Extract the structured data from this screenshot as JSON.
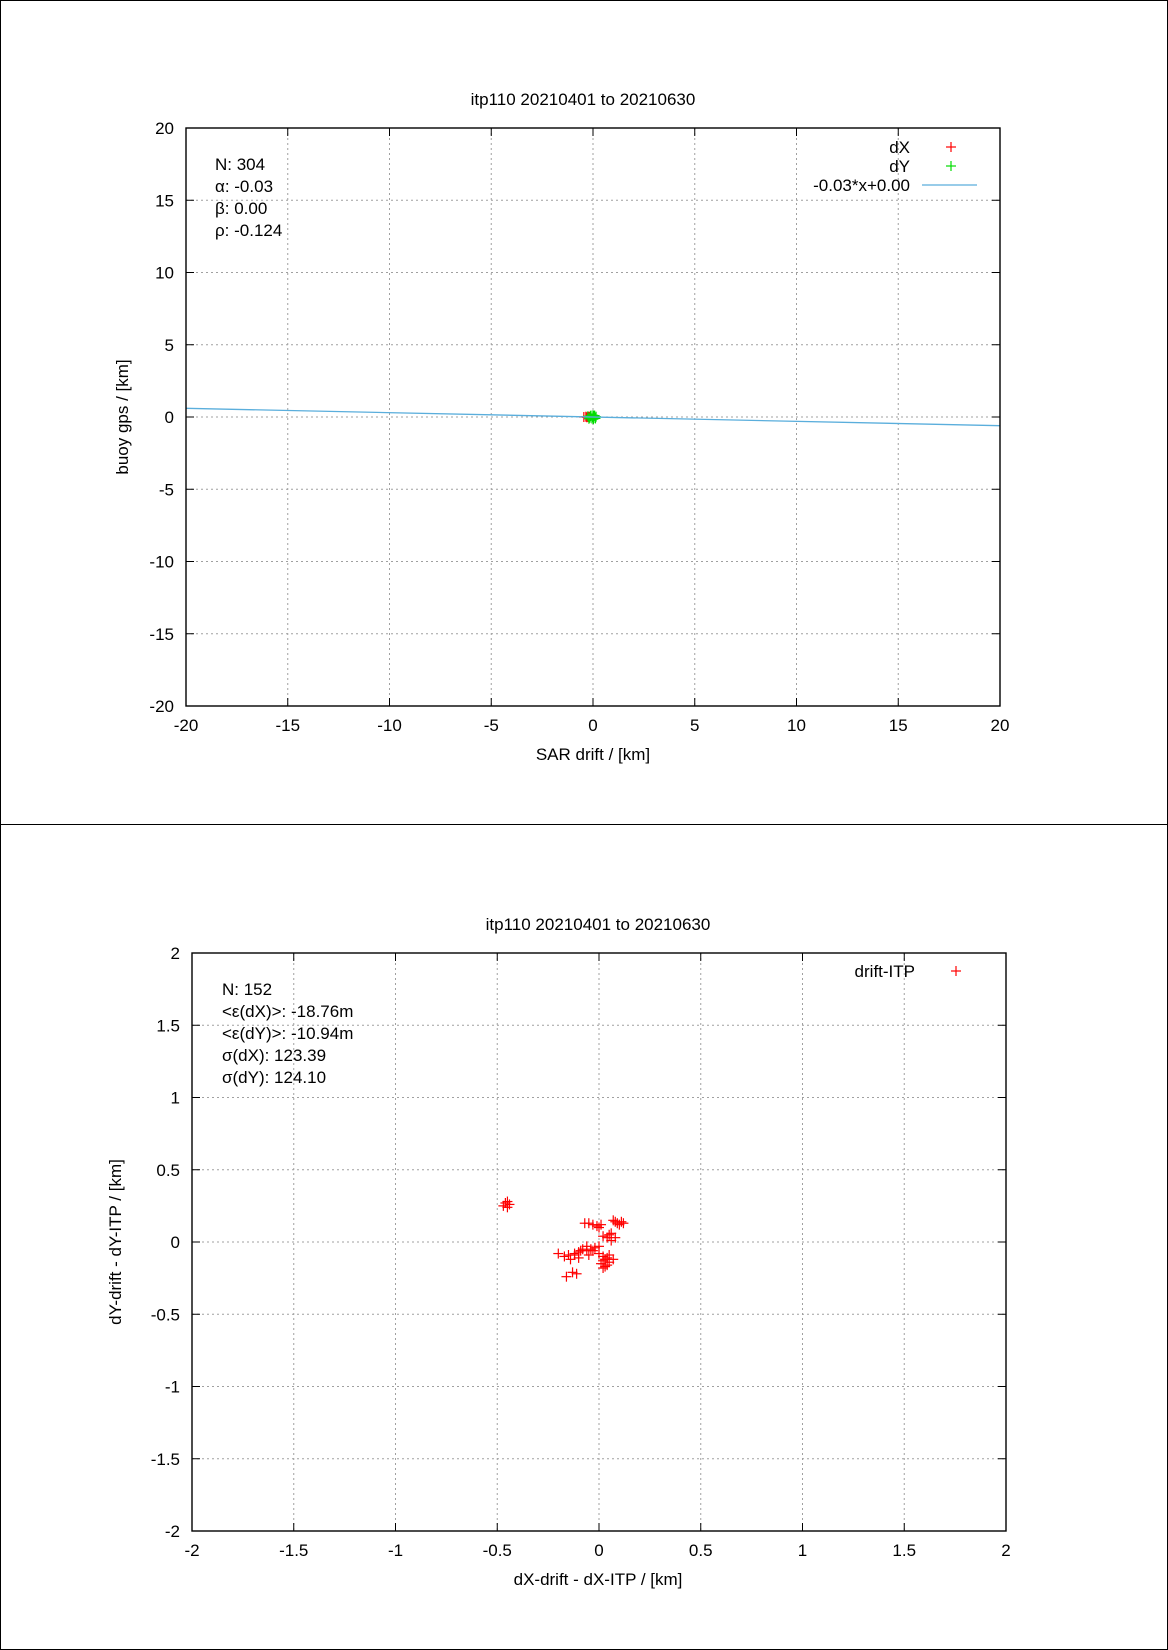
{
  "chart_data": [
    {
      "type": "scatter",
      "title": "itp110 20210401 to 20210630",
      "xlabel": "SAR drift / [km]",
      "ylabel": "buoy gps / [km]",
      "xlim": [
        -20,
        20
      ],
      "ylim": [
        -20,
        20
      ],
      "xticks": [
        "-20",
        "-15",
        "-10",
        "-5",
        "0",
        "5",
        "10",
        "15",
        "20"
      ],
      "yticks": [
        "-20",
        "-15",
        "-10",
        "-5",
        "0",
        "5",
        "10",
        "15",
        "20"
      ],
      "grid": true,
      "legend_position": "top-right",
      "stats": [
        "N: 304",
        "α: -0.03",
        "β: 0.00",
        "ρ: -0.124"
      ],
      "series": [
        {
          "name": "dX",
          "marker": "plus",
          "color": "#ff0000",
          "x": [
            -0.45,
            -0.35,
            -0.3,
            -0.25,
            -0.2,
            -0.18
          ],
          "y": [
            0.0,
            0.02,
            -0.02,
            0.01,
            0.0,
            0.02
          ]
        },
        {
          "name": "dY",
          "marker": "plus",
          "color": "#00dd00",
          "x": [
            -0.25,
            -0.15,
            -0.1,
            -0.05,
            0.0,
            0.05,
            0.1,
            0.15,
            -0.2,
            0.0,
            0.08,
            -0.12,
            0.12,
            0.02
          ],
          "y": [
            0.05,
            -0.05,
            0.1,
            -0.1,
            0.0,
            0.08,
            -0.06,
            0.02,
            -0.12,
            0.12,
            0.1,
            0.06,
            -0.1,
            -0.15
          ]
        },
        {
          "name": "-0.03*x+0.00",
          "type": "line",
          "color": "#5aaedc",
          "slope": -0.03,
          "intercept": 0.0
        }
      ]
    },
    {
      "type": "scatter",
      "title": "itp110 20210401 to 20210630",
      "xlabel": "dX-drift - dX-ITP / [km]",
      "ylabel": "dY-drift - dY-ITP / [km]",
      "xlim": [
        -2,
        2
      ],
      "ylim": [
        -2,
        2
      ],
      "xticks": [
        "-2",
        "-1.5",
        "-1",
        "-0.5",
        "0",
        "0.5",
        "1",
        "1.5",
        "2"
      ],
      "yticks": [
        "-2",
        "-1.5",
        "-1",
        "-0.5",
        "0",
        "0.5",
        "1",
        "1.5",
        "2"
      ],
      "grid": true,
      "legend_position": "top-right",
      "stats": [
        "N: 152",
        "<ε(dX)>:  -18.76m",
        "<ε(dY)>: -10.94m",
        "σ(dX):  123.39",
        "σ(dY):  124.10"
      ],
      "series": [
        {
          "name": "drift-ITP",
          "marker": "plus",
          "color": "#ff0000",
          "x": [
            -0.47,
            -0.46,
            -0.45,
            -0.44,
            -0.45,
            -0.07,
            -0.05,
            -0.03,
            -0.01,
            0.0,
            0.01,
            0.07,
            0.08,
            0.09,
            0.1,
            0.12,
            0.11,
            0.06,
            0.05,
            0.04,
            0.02,
            0.0,
            -0.02,
            -0.04,
            -0.06,
            -0.08,
            -0.1,
            -0.12,
            -0.15,
            -0.2,
            -0.17,
            -0.14,
            -0.12,
            -0.1,
            -0.11,
            -0.13,
            -0.16,
            0.02,
            0.03,
            0.05,
            0.07,
            0.03,
            0.01,
            0.02,
            0.04,
            0.05,
            -0.06,
            -0.03,
            0.0,
            0.06,
            0.08,
            -0.09,
            -0.05,
            0.02,
            0.04
          ],
          "y": [
            0.25,
            0.27,
            0.28,
            0.26,
            0.24,
            0.13,
            0.13,
            0.12,
            0.11,
            0.1,
            0.12,
            0.15,
            0.14,
            0.13,
            0.12,
            0.13,
            0.14,
            0.06,
            0.05,
            0.03,
            0.04,
            -0.03,
            -0.04,
            -0.05,
            -0.06,
            -0.05,
            -0.07,
            -0.08,
            -0.09,
            -0.08,
            -0.1,
            -0.12,
            -0.09,
            -0.11,
            -0.22,
            -0.21,
            -0.24,
            -0.1,
            -0.12,
            -0.14,
            -0.12,
            -0.17,
            -0.15,
            -0.18,
            -0.11,
            -0.09,
            -0.03,
            -0.06,
            -0.08,
            0.01,
            0.03,
            -0.06,
            -0.09,
            -0.13,
            -0.16
          ]
        }
      ]
    }
  ]
}
